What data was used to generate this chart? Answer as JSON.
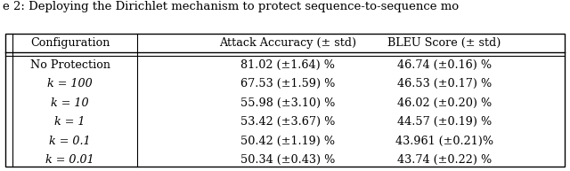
{
  "title_text": "e 2: Deploying the Dirichlet mechanism to protect sequence-to-sequence mo",
  "header": [
    "Configuration",
    "Attack Accuracy (± std)",
    "BLEU Score (± std)"
  ],
  "rows": [
    [
      "No Protection",
      "81.02 (±1.64) %",
      "46.74 (±0.16) %"
    ],
    [
      "k = 100",
      "67.53 (±1.59) %",
      "46.53 (±0.17) %"
    ],
    [
      "k = 10",
      "55.98 (±3.10) %",
      "46.02 (±0.20) %"
    ],
    [
      "k = 1",
      "53.42 (±3.67) %",
      "44.57 (±0.19) %"
    ],
    [
      "k = 0.1",
      "50.42 (±1.19) %",
      "43.961 (±0.21)%"
    ],
    [
      "k = 0.01",
      "50.34 (±0.43) %",
      "43.74 (±0.22) %"
    ]
  ],
  "figsize": [
    6.4,
    1.93
  ],
  "dpi": 100,
  "font_size": 9.2,
  "title_font_size": 9.5,
  "bg_color": "#ffffff"
}
